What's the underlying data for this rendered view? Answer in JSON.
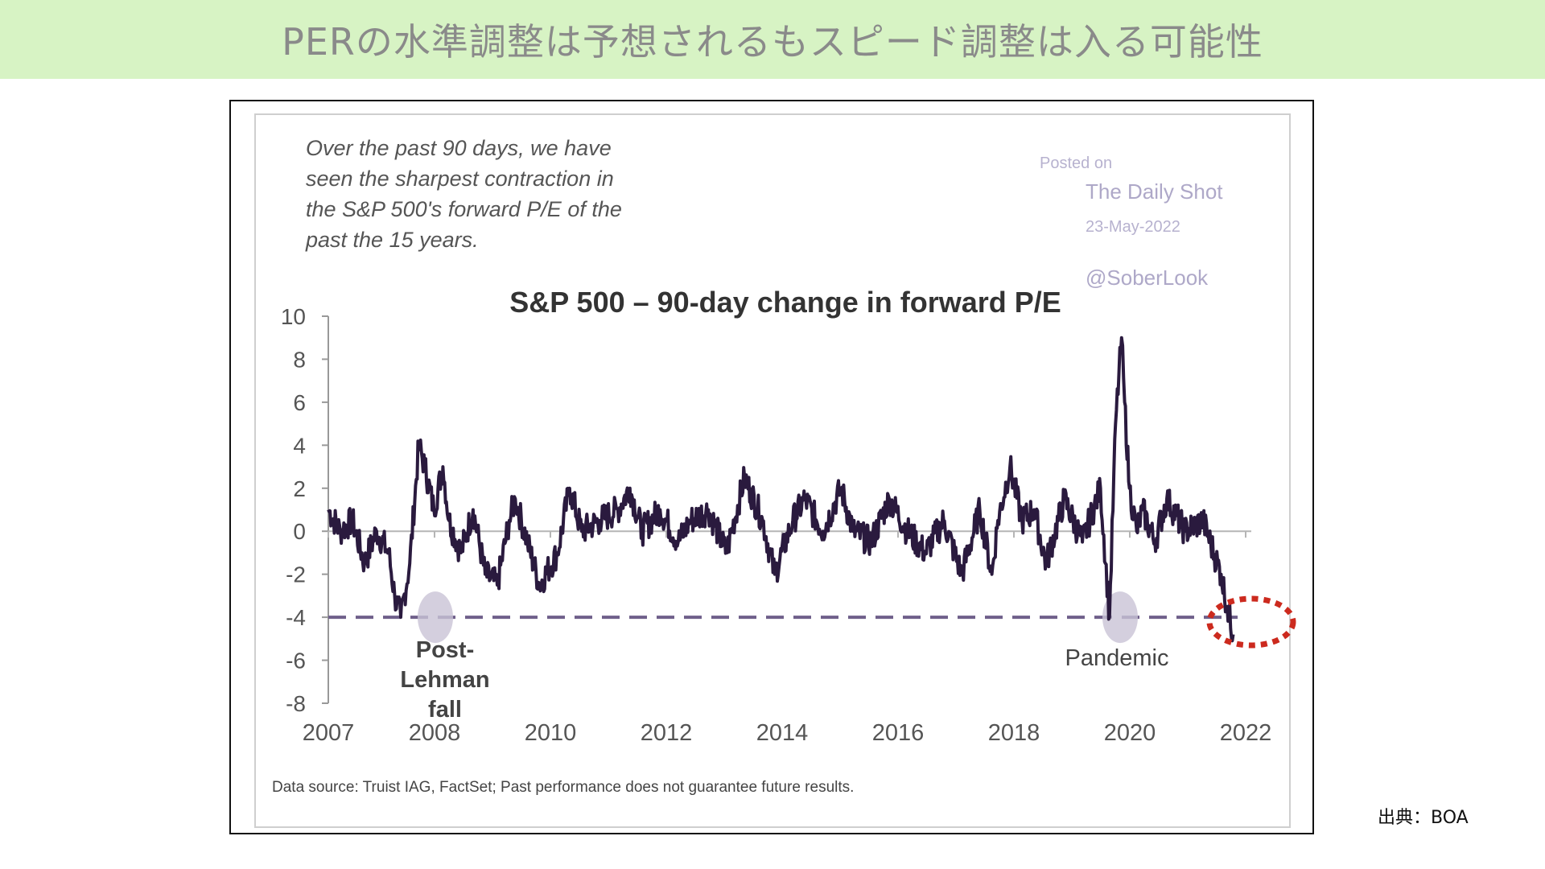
{
  "slide": {
    "title": "PERの水準調整は予想されるもスピード調整は入る可能性",
    "source_label": "出典：BOA"
  },
  "colors": {
    "banner_bg": "#d7f3c4",
    "series_line": "#2a1a3e",
    "threshold_line": "#6f5f8a",
    "highlight_circle": "#cc2a1e",
    "callout_ellipse": "#c9c3d6"
  },
  "chart_data": {
    "type": "line",
    "title": "S&P 500 – 90-day change in forward P/E",
    "note": "Over the past 90 days, we have seen the sharpest contraction in the S&P 500's forward P/E of the past the 15 years.",
    "note_lines": [
      "Over the past 90 days, we have",
      "seen the sharpest contraction in",
      "the S&P 500's forward P/E of the",
      "past the 15 years."
    ],
    "watermark": {
      "posted_on": "Posted on",
      "site": "The Daily Shot",
      "date": "23-May-2022",
      "handle": "@SoberLook"
    },
    "xlabel": "",
    "ylabel": "",
    "xlim": [
      2007,
      2022.3
    ],
    "ylim": [
      -8,
      10
    ],
    "x_ticks": [
      "2007",
      "2008",
      "2010",
      "2012",
      "2014",
      "2016",
      "2018",
      "2020",
      "2022"
    ],
    "y_ticks": [
      "10",
      "8",
      "6",
      "4",
      "2",
      "0",
      "-2",
      "-4",
      "-6",
      "-8"
    ],
    "reference_line": {
      "y": -4,
      "style": "dashed"
    },
    "annotations": [
      {
        "label_lines": [
          "Post-",
          "Lehman",
          "fall"
        ],
        "x": 2008.0,
        "y": -4
      },
      {
        "label_lines": [
          "Pandemic"
        ],
        "x": 2020.0,
        "y": -4
      }
    ],
    "highlight": {
      "x": 2022.0,
      "y": -4.2
    },
    "footnote": "Data source: Truist IAG, FactSet; Past performance does not guarantee future results.",
    "series": [
      {
        "x": [
          2007.0,
          2007.2,
          2007.4,
          2007.6,
          2007.8,
          2008.0,
          2008.1,
          2008.2,
          2008.35,
          2008.5,
          2008.6,
          2008.75,
          2008.9,
          2009.0,
          2009.2,
          2009.4,
          2009.6,
          2009.8,
          2010.0,
          2010.1,
          2010.3,
          2010.5,
          2010.8,
          2011.0,
          2011.2,
          2011.5,
          2011.8,
          2012.0,
          2012.2,
          2012.5,
          2012.8,
          2013.0,
          2013.3,
          2013.6,
          2013.9,
          2014.2,
          2014.4,
          2014.7,
          2014.9,
          2015.2,
          2015.5,
          2015.7,
          2016.0,
          2016.3,
          2016.6,
          2016.9,
          2017.2,
          2017.5,
          2017.8,
          2018.0,
          2018.1,
          2018.3,
          2018.5,
          2018.7,
          2018.9,
          2019.2,
          2019.5,
          2019.8,
          2019.95,
          2020.05,
          2020.15,
          2020.2,
          2020.28,
          2020.4,
          2020.5,
          2020.7,
          2020.9,
          2021.2,
          2021.5,
          2021.8,
          2021.9,
          2022.0
        ],
        "y": [
          1.0,
          0.0,
          0.5,
          -1.5,
          0.0,
          -1.0,
          -3.0,
          -4.0,
          -1.5,
          4.0,
          3.0,
          1.0,
          3.0,
          0.5,
          -1.0,
          1.0,
          -2.0,
          -2.5,
          0.5,
          1.5,
          -0.5,
          -2.5,
          -1.0,
          2.0,
          0.0,
          0.5,
          1.0,
          2.0,
          0.0,
          1.0,
          -0.5,
          0.5,
          1.0,
          -1.0,
          2.5,
          0.5,
          -2.0,
          0.5,
          1.5,
          0.0,
          2.0,
          0.0,
          -0.5,
          1.5,
          0.0,
          -1.0,
          0.5,
          -2.0,
          1.0,
          -2.0,
          0.5,
          3.0,
          0.5,
          1.0,
          -1.5,
          1.5,
          -0.5,
          2.0,
          -4.0,
          5.0,
          9.0,
          6.0,
          2.0,
          0.0,
          1.0,
          -0.5,
          1.5,
          0.0,
          0.5,
          -2.0,
          -3.5,
          -4.8
        ]
      }
    ]
  }
}
